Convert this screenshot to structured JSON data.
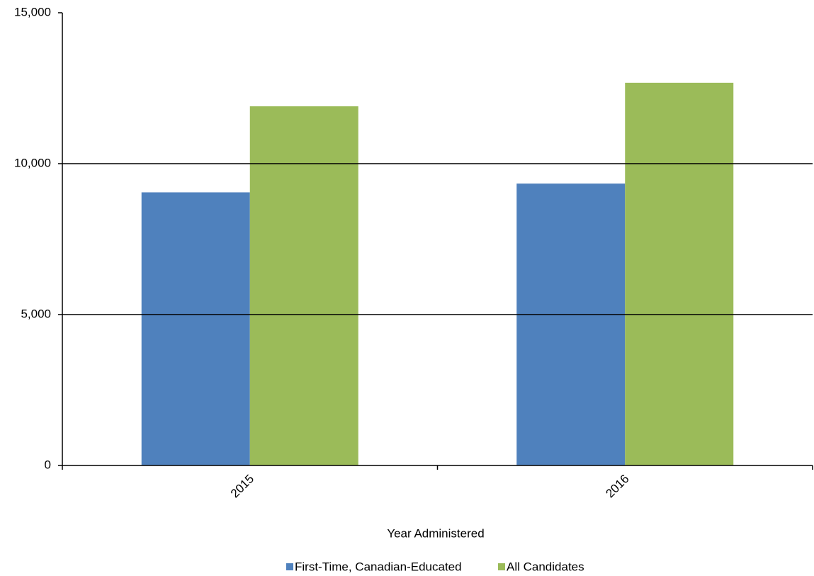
{
  "chart_data": {
    "type": "bar",
    "x_label": "Year Administered",
    "categories": [
      "2015",
      "2016"
    ],
    "series": [
      {
        "name": "First-Time, Canadian-Educated",
        "color": "#4f81bd",
        "values": [
          9050,
          9340
        ]
      },
      {
        "name": "All Candidates",
        "color": "#9bbb59",
        "values": [
          11900,
          12680
        ]
      }
    ],
    "ylim": [
      0,
      15000
    ],
    "yticks": [
      0,
      {
        "value": 5000,
        "label": "5,000"
      },
      {
        "value": 10000,
        "label": "10,000"
      },
      {
        "value": 15000,
        "label": "15,000"
      }
    ],
    "grid": true,
    "legend": "bottom"
  }
}
